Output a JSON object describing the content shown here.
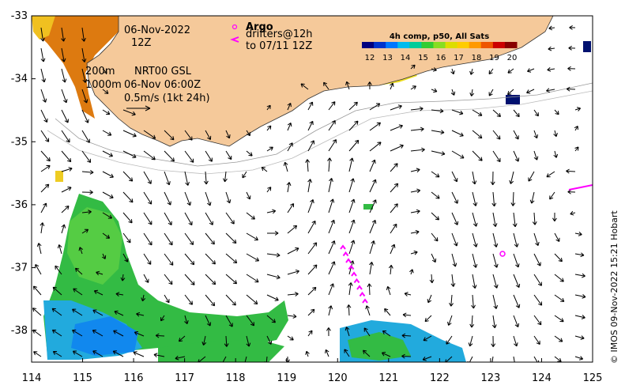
{
  "map": {
    "lon_range": [
      114,
      125
    ],
    "lat_range": [
      -38.5,
      -33
    ],
    "x_ticks": [
      "114",
      "115",
      "116",
      "117",
      "118",
      "119",
      "120",
      "121",
      "122",
      "123",
      "124",
      "125"
    ],
    "y_ticks": [
      "-33",
      "-34",
      "-35",
      "-36",
      "-37",
      "-38"
    ],
    "land_color": "#f5c99a",
    "arrow_color": "#000000",
    "drifter_color": "#ff00ff"
  },
  "annotations": {
    "date": "06-Nov-2022",
    "time": "12Z",
    "depth1": "200m",
    "depth2": "1000m",
    "product": "NRT00 GSL",
    "product_time": "06-Nov 06:00Z",
    "scale_label": "0.5m/s (1kt 24h)",
    "argo_label": "Argo",
    "drifters_line1": "drifters@12h",
    "drifters_line2": "to 07/11 12Z"
  },
  "colorbar": {
    "title": "4h comp, p50, All Sats",
    "ticks": [
      "12",
      "13",
      "14",
      "15",
      "16",
      "17",
      "18",
      "19",
      "20"
    ],
    "colors": [
      "#00007f",
      "#0033cc",
      "#0077ff",
      "#00bbee",
      "#00cc99",
      "#33cc33",
      "#88dd22",
      "#dddd00",
      "#ffcc00",
      "#ff9900",
      "#ee5500",
      "#cc0000",
      "#880000"
    ]
  },
  "credit": "© IMOS 09-Nov-2022 15:21 Hobart"
}
